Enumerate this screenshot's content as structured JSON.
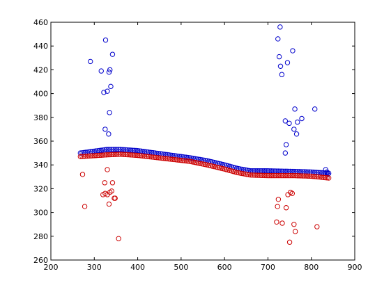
{
  "chart_data": {
    "type": "scatter",
    "title": "",
    "xlabel": "",
    "ylabel": "",
    "xlim": [
      200,
      900
    ],
    "ylim": [
      260,
      460
    ],
    "grid": false,
    "xticks": [
      200,
      300,
      400,
      500,
      600,
      700,
      800,
      900
    ],
    "yticks": [
      260,
      280,
      300,
      320,
      340,
      360,
      380,
      400,
      420,
      440,
      460
    ],
    "colors": {
      "blue": "#0000cc",
      "red": "#cc0000"
    },
    "marker": "circle-open",
    "series": [
      {
        "color": "blue",
        "band": {
          "x_range": [
            268,
            840
          ],
          "step": 4,
          "curve": [
            [
              268,
              350
            ],
            [
              330,
              353
            ],
            [
              360,
              353
            ],
            [
              400,
              352
            ],
            [
              460,
              349
            ],
            [
              520,
              346
            ],
            [
              560,
              343.5
            ],
            [
              600,
              340
            ],
            [
              630,
              337
            ],
            [
              660,
              335
            ],
            [
              700,
              335
            ],
            [
              760,
              334.5
            ],
            [
              800,
              334
            ],
            [
              840,
              333
            ]
          ]
        },
        "outliers": [
          [
            291,
            427
          ],
          [
            316,
            419
          ],
          [
            322,
            401
          ],
          [
            326,
            445
          ],
          [
            325,
            370
          ],
          [
            330,
            402
          ],
          [
            333,
            366
          ],
          [
            334,
            418
          ],
          [
            336,
            420
          ],
          [
            335,
            384
          ],
          [
            338,
            406
          ],
          [
            342,
            433
          ],
          [
            723,
            446
          ],
          [
            728,
            456
          ],
          [
            726,
            431
          ],
          [
            729,
            423
          ],
          [
            732,
            416
          ],
          [
            745,
            426
          ],
          [
            757,
            436
          ],
          [
            740,
            377
          ],
          [
            742,
            357
          ],
          [
            740,
            350
          ],
          [
            749,
            375
          ],
          [
            760,
            370
          ],
          [
            762,
            387
          ],
          [
            766,
            366
          ],
          [
            768,
            376
          ],
          [
            778,
            379
          ],
          [
            808,
            387
          ],
          [
            833,
            336
          ],
          [
            836,
            334
          ],
          [
            838,
            332
          ]
        ]
      },
      {
        "color": "red",
        "band": {
          "x_range": [
            268,
            840
          ],
          "step": 4,
          "curve": [
            [
              268,
              347
            ],
            [
              330,
              348.5
            ],
            [
              360,
              349
            ],
            [
              400,
              348
            ],
            [
              460,
              345.5
            ],
            [
              520,
              343
            ],
            [
              560,
              340
            ],
            [
              600,
              336.5
            ],
            [
              630,
              333.5
            ],
            [
              660,
              331.5
            ],
            [
              700,
              331
            ],
            [
              760,
              331
            ],
            [
              800,
              330.5
            ],
            [
              840,
              329
            ]
          ]
        },
        "outliers": [
          [
            273,
            332
          ],
          [
            278,
            305
          ],
          [
            320,
            315
          ],
          [
            324,
            325
          ],
          [
            325,
            316
          ],
          [
            330,
            315
          ],
          [
            330,
            336
          ],
          [
            334,
            307
          ],
          [
            336,
            317
          ],
          [
            340,
            318
          ],
          [
            342,
            325
          ],
          [
            346,
            312
          ],
          [
            348,
            312
          ],
          [
            356,
            278
          ],
          [
            720,
            292
          ],
          [
            724,
            311
          ],
          [
            722,
            305
          ],
          [
            733,
            291
          ],
          [
            742,
            304
          ],
          [
            746,
            315
          ],
          [
            750,
            275
          ],
          [
            752,
            317
          ],
          [
            756,
            316
          ],
          [
            760,
            290
          ],
          [
            763,
            284
          ],
          [
            813,
            288
          ]
        ]
      }
    ]
  }
}
